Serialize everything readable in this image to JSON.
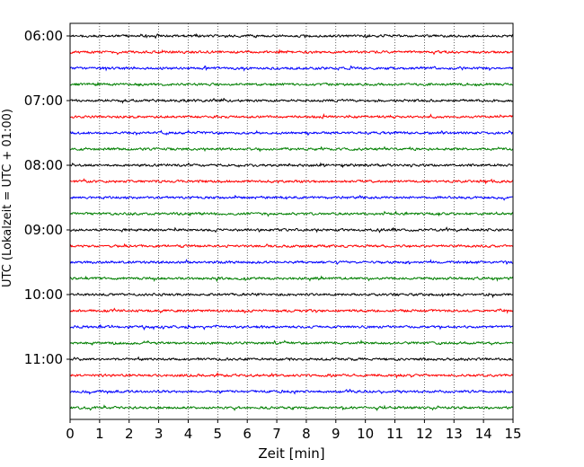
{
  "chart_data": {
    "type": "line",
    "title": "",
    "xlabel": "Zeit  [min]",
    "ylabel": "UTC (Lokalzeit = UTC + 01:00)",
    "xlim": [
      0,
      15
    ],
    "x_ticks": [
      "0",
      "1",
      "2",
      "3",
      "4",
      "5",
      "6",
      "7",
      "8",
      "9",
      "10",
      "11",
      "12",
      "13",
      "14",
      "15"
    ],
    "y_ticks": [
      "06:00",
      "07:00",
      "08:00",
      "09:00",
      "10:00",
      "11:00"
    ],
    "grid": "vertical-dotted",
    "series": [
      {
        "start": "06:00",
        "color": "#000000"
      },
      {
        "start": "06:15",
        "color": "#ff0000"
      },
      {
        "start": "06:30",
        "color": "#0000ff"
      },
      {
        "start": "06:45",
        "color": "#007f00"
      },
      {
        "start": "07:00",
        "color": "#000000"
      },
      {
        "start": "07:15",
        "color": "#ff0000"
      },
      {
        "start": "07:30",
        "color": "#0000ff"
      },
      {
        "start": "07:45",
        "color": "#007f00"
      },
      {
        "start": "08:00",
        "color": "#000000"
      },
      {
        "start": "08:15",
        "color": "#ff0000"
      },
      {
        "start": "08:30",
        "color": "#0000ff"
      },
      {
        "start": "08:45",
        "color": "#007f00"
      },
      {
        "start": "09:00",
        "color": "#000000"
      },
      {
        "start": "09:15",
        "color": "#ff0000"
      },
      {
        "start": "09:30",
        "color": "#0000ff"
      },
      {
        "start": "09:45",
        "color": "#007f00"
      },
      {
        "start": "10:00",
        "color": "#000000"
      },
      {
        "start": "10:15",
        "color": "#ff0000"
      },
      {
        "start": "10:30",
        "color": "#0000ff"
      },
      {
        "start": "10:45",
        "color": "#007f00"
      },
      {
        "start": "11:00",
        "color": "#000000"
      },
      {
        "start": "11:15",
        "color": "#ff0000"
      },
      {
        "start": "11:30",
        "color": "#0000ff"
      },
      {
        "start": "11:45",
        "color": "#007f00"
      }
    ]
  }
}
